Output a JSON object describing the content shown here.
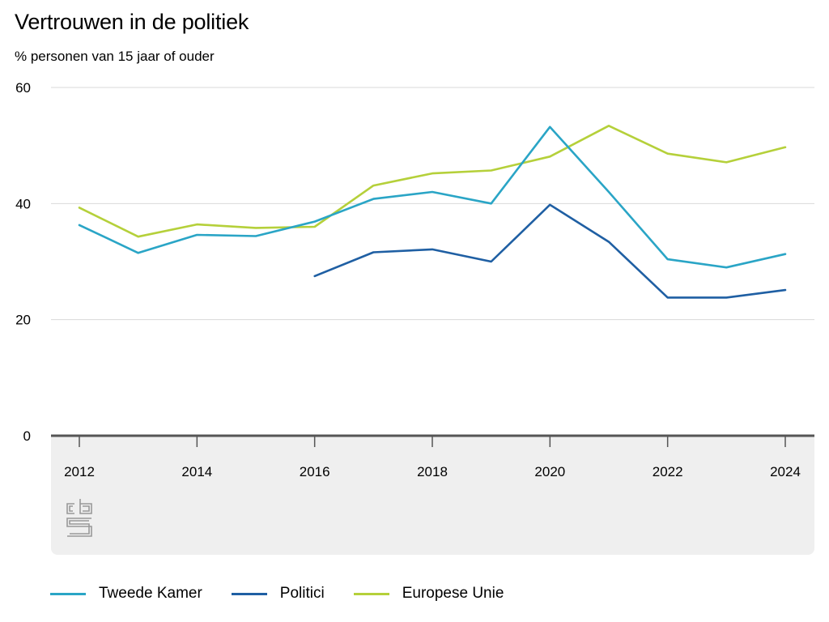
{
  "chart_data": {
    "type": "line",
    "title": "Vertrouwen in de politiek",
    "subtitle": "% personen van 15 jaar of ouder",
    "xlabel": "",
    "ylabel": "",
    "x": [
      2012,
      2013,
      2014,
      2015,
      2016,
      2017,
      2018,
      2019,
      2020,
      2021,
      2022,
      2023,
      2024
    ],
    "x_tick_labels": [
      "2012",
      "2014",
      "2016",
      "2018",
      "2020",
      "2022",
      "2024"
    ],
    "y_tick_labels": [
      "0",
      "20",
      "40",
      "60"
    ],
    "ylim": [
      0,
      60
    ],
    "grid": true,
    "legend_position": "bottom",
    "series": [
      {
        "name": "Tweede Kamer",
        "color": "#2aa5c6",
        "values": [
          36.3,
          31.5,
          34.6,
          34.4,
          36.9,
          40.8,
          42.0,
          40.0,
          53.2,
          42.0,
          30.4,
          29.0,
          31.3
        ]
      },
      {
        "name": "Politici",
        "color": "#1f5fa3",
        "values": [
          null,
          null,
          null,
          null,
          27.5,
          31.6,
          32.1,
          30.0,
          39.8,
          33.4,
          23.8,
          23.8,
          25.1
        ]
      },
      {
        "name": "Europese Unie",
        "color": "#b5d03a",
        "values": [
          39.3,
          34.3,
          36.4,
          35.8,
          36.0,
          43.1,
          45.2,
          45.7,
          48.1,
          53.4,
          48.6,
          47.1,
          49.7
        ]
      }
    ]
  },
  "logo": {
    "name": "cbs-logo",
    "text": "cbs"
  }
}
